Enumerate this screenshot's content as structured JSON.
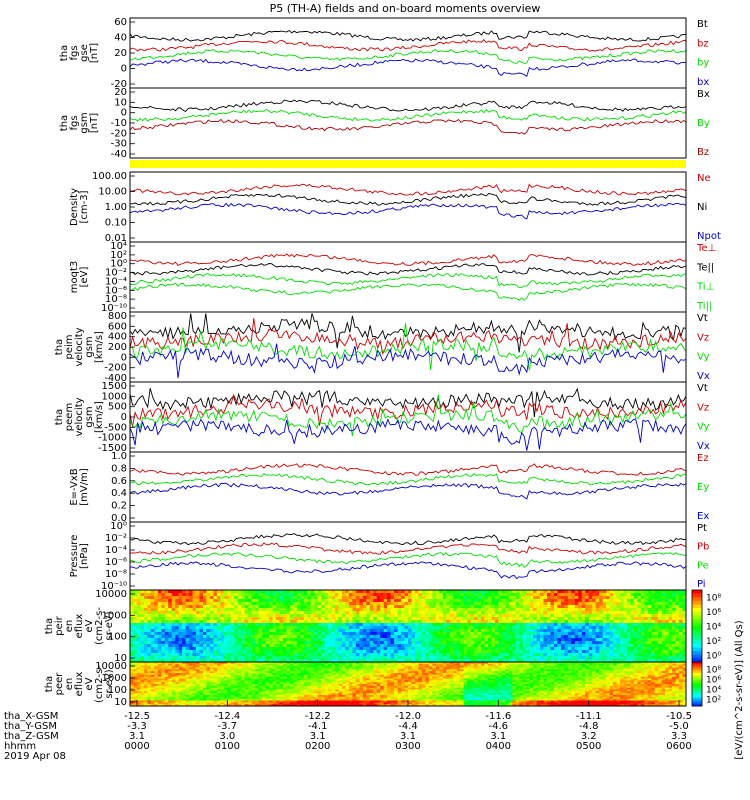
{
  "title": "P5 (TH-A) fields and on-board moments overview",
  "chart_data": [
    {
      "type": "line",
      "ylabel": [
        "tha",
        "fgs",
        "gse",
        "[nT]"
      ],
      "yticks": [
        "60",
        "40",
        "20",
        "0",
        "-20"
      ],
      "series": [
        {
          "name": "Bt",
          "color": "#000000"
        },
        {
          "name": "bz",
          "color": "#cc0000"
        },
        {
          "name": "by",
          "color": "#00dd00"
        },
        {
          "name": "bx",
          "color": "#0000cc"
        }
      ]
    },
    {
      "type": "line",
      "ylabel": [
        "tha",
        "fgs",
        "gsm",
        "[nT]"
      ],
      "yticks": [
        "20",
        "10",
        "0",
        "-10",
        "-20",
        "-30",
        "-40"
      ],
      "series": [
        {
          "name": "Bx",
          "color": "#000000"
        },
        {
          "name": "By",
          "color": "#00dd00"
        },
        {
          "name": "Bz",
          "color": "#aa0000"
        }
      ]
    },
    {
      "type": "line",
      "ylabel": [
        "Density",
        "[cm-3]"
      ],
      "yticks": [
        "100.00",
        "10.00",
        "1.00",
        "0.10",
        "0.01"
      ],
      "series": [
        {
          "name": "Ne",
          "color": "#cc0000"
        },
        {
          "name": "Ni",
          "color": "#000000"
        },
        {
          "name": "Npot",
          "color": "#0000cc"
        }
      ]
    },
    {
      "type": "line",
      "ylabel": [
        "moqt3",
        "[eV]"
      ],
      "yticks": [
        "10⁴",
        "10²",
        "10⁰",
        "10⁻²",
        "10⁻⁴",
        "10⁻⁶",
        "10⁻⁸",
        "10⁻¹⁰"
      ],
      "series": [
        {
          "name": "Te⊥",
          "color": "#cc0000"
        },
        {
          "name": "Te||",
          "color": "#000000"
        },
        {
          "name": "Ti⊥",
          "color": "#00dd00"
        },
        {
          "name": "Ti||",
          "color": "#00dd00"
        }
      ]
    },
    {
      "type": "line",
      "ylabel": [
        "tha",
        "peim",
        "velocity",
        "gsm",
        "[km/s]"
      ],
      "yticks": [
        "800",
        "600",
        "400",
        "200",
        "0",
        "-200",
        "-400"
      ],
      "series": [
        {
          "name": "Vt",
          "color": "#000000"
        },
        {
          "name": "Vz",
          "color": "#cc0000"
        },
        {
          "name": "Vy",
          "color": "#00dd00"
        },
        {
          "name": "Vx",
          "color": "#0000cc"
        }
      ]
    },
    {
      "type": "line",
      "ylabel": [
        "tha",
        "peem",
        "velocity",
        "gsm",
        "[km/s]"
      ],
      "yticks": [
        "1500",
        "1000",
        "500",
        "0",
        "-500",
        "-1000",
        "-1500"
      ],
      "series": [
        {
          "name": "Vt",
          "color": "#000000"
        },
        {
          "name": "Vz",
          "color": "#cc0000"
        },
        {
          "name": "Vy",
          "color": "#00dd00"
        },
        {
          "name": "Vx",
          "color": "#0000cc"
        }
      ]
    },
    {
      "type": "line",
      "ylabel": [
        "E=-VxB",
        "[mV/m]"
      ],
      "yticks": [
        "1.0",
        "0.8",
        "0.6",
        "0.4",
        "0.2",
        "0.0"
      ],
      "series": [
        {
          "name": "Ez",
          "color": "#cc0000"
        },
        {
          "name": "Ey",
          "color": "#00dd00"
        },
        {
          "name": "Ex",
          "color": "#0000cc"
        }
      ]
    },
    {
      "type": "line",
      "ylabel": [
        "Pressure",
        "[nPa]"
      ],
      "yticks": [
        "10⁰",
        "10⁻²",
        "10⁻⁴",
        "10⁻⁶",
        "10⁻⁸",
        "10⁻¹⁰"
      ],
      "series": [
        {
          "name": "Pt",
          "color": "#000000"
        },
        {
          "name": "Pb",
          "color": "#cc0000"
        },
        {
          "name": "Pe",
          "color": "#00dd00"
        },
        {
          "name": "Pi",
          "color": "#0000cc"
        }
      ]
    },
    {
      "type": "heatmap",
      "ylabel": [
        "tha",
        "peir",
        "en",
        "eflux",
        "eV",
        "(cm2-s-",
        "sr-eV)"
      ],
      "yticks": [
        "10000",
        "1000",
        "100",
        "10"
      ],
      "colorbar": {
        "label": "[eV/(cm^2-s-sr-eV)] (All Qs)",
        "ticks": [
          "10⁸",
          "10⁶",
          "10⁴",
          "10²",
          "10⁰"
        ]
      }
    },
    {
      "type": "heatmap",
      "ylabel": [
        "tha",
        "peer",
        "en",
        "eflux",
        "eV",
        "(cm2-s-",
        "sr-eV)"
      ],
      "yticks": [
        "10000",
        "1000",
        "100",
        "10"
      ],
      "colorbar": {
        "label": "[eV/(cm^2-s-sr-eV)] (All Qs)",
        "ticks": [
          "10⁸",
          "10⁶",
          "10⁴",
          "10²"
        ]
      }
    }
  ],
  "xaxis": {
    "ticks": [
      "-12.5",
      "-12.4",
      "-12.2",
      "-12.0",
      "-11.6",
      "-11.1",
      "-10.5"
    ],
    "ephemeris": [
      {
        "label": "tha_X-GSM",
        "values": [
          "-12.5",
          "-12.4",
          "-12.2",
          "-12.0",
          "-11.6",
          "-11.1",
          "-10.5"
        ]
      },
      {
        "label": "tha_Y-GSM",
        "values": [
          "-3.3",
          "-3.7",
          "-4.1",
          "-4.4",
          "-4.6",
          "-4.8",
          "-5.0"
        ]
      },
      {
        "label": "tha_Z-GSM",
        "values": [
          "3.1",
          "3.0",
          "3.1",
          "3.1",
          "3.1",
          "3.2",
          "3.3"
        ]
      },
      {
        "label": "hhmm",
        "values": [
          "0000",
          "0100",
          "0200",
          "0300",
          "0400",
          "0500",
          "0600"
        ]
      }
    ],
    "date": "2019 Apr 08"
  },
  "colors": {
    "yellow_bar": "#ffff00"
  }
}
